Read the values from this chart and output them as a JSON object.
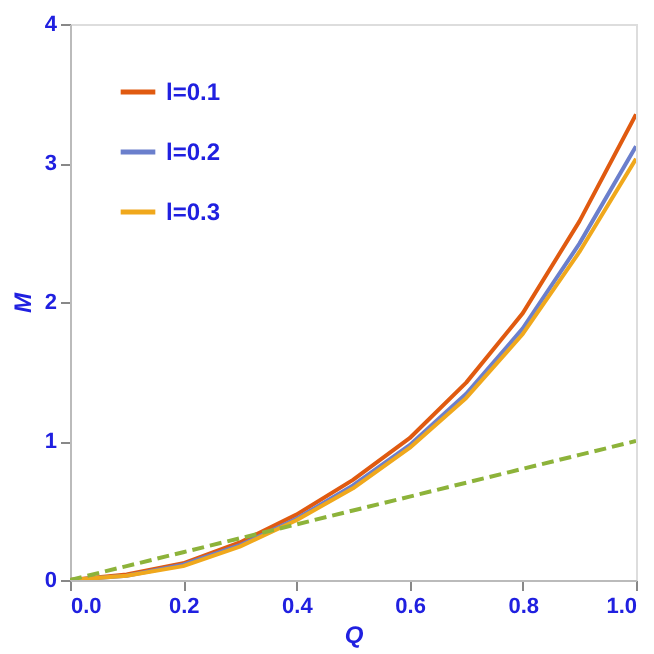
{
  "chart_data": {
    "type": "line",
    "xlabel": "Q",
    "ylabel": "M",
    "x": [
      0,
      0.1,
      0.2,
      0.3,
      0.4,
      0.5,
      0.6,
      0.7,
      0.8,
      0.9,
      1.0
    ],
    "series": [
      {
        "name": "l=0.1",
        "color": "#e05a10",
        "values": [
          0,
          0.04,
          0.12,
          0.27,
          0.47,
          0.72,
          1.02,
          1.42,
          1.92,
          2.58,
          3.35
        ]
      },
      {
        "name": "l=0.2",
        "color": "#6b7fcc",
        "values": [
          0,
          0.03,
          0.11,
          0.25,
          0.44,
          0.68,
          0.97,
          1.34,
          1.81,
          2.42,
          3.12
        ]
      },
      {
        "name": "l=0.3",
        "color": "#f0a81c",
        "values": [
          0,
          0.03,
          0.1,
          0.24,
          0.43,
          0.66,
          0.95,
          1.31,
          1.77,
          2.36,
          3.03
        ]
      },
      {
        "color": "#8db33a",
        "line_style": "dashed",
        "values": [
          0,
          0.1,
          0.2,
          0.3,
          0.4,
          0.5,
          0.6,
          0.7,
          0.8,
          0.9,
          1.0
        ]
      }
    ],
    "xlim": [
      0,
      1.0
    ],
    "xticks": [
      {
        "value": 0,
        "label": "0.0"
      },
      0.2,
      0.4,
      0.6,
      0.8,
      {
        "value": 1,
        "label": "1.0"
      }
    ],
    "ylim": [
      0,
      4
    ],
    "yticks": [
      0,
      1,
      2,
      3,
      4
    ],
    "legend": "top left",
    "marker": "none",
    "line_style": "solid",
    "grid": false
  }
}
